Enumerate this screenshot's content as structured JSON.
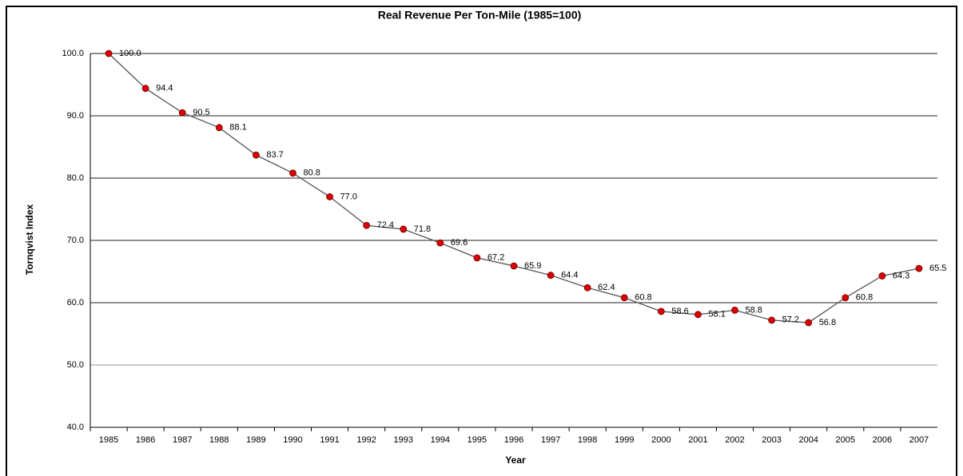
{
  "chart_data": {
    "type": "line",
    "title": "Real Revenue Per Ton-Mile (1985=100)",
    "x_label": "Year",
    "y_label": "Tornqvist Index",
    "categories": [
      "1985",
      "1986",
      "1987",
      "1988",
      "1989",
      "1990",
      "1991",
      "1992",
      "1993",
      "1994",
      "1995",
      "1996",
      "1997",
      "1998",
      "1999",
      "2000",
      "2001",
      "2002",
      "2003",
      "2004",
      "2005",
      "2006",
      "2007"
    ],
    "series": [
      {
        "name": "Real Revenue Per Ton-Mile",
        "color": "#555555",
        "marker_color": "#dd0000",
        "values": [
          100.0,
          94.4,
          90.5,
          88.1,
          83.7,
          80.8,
          77.0,
          72.4,
          71.8,
          69.6,
          67.2,
          65.9,
          64.4,
          62.4,
          60.8,
          58.6,
          58.1,
          58.8,
          57.2,
          56.8,
          60.8,
          64.3,
          65.5
        ],
        "value_labels": [
          "100.0",
          "94.4",
          "90.5",
          "88.1",
          "83.7",
          "80.8",
          "77.0",
          "72.4",
          "71.8",
          "69.6",
          "67.2",
          "65.9",
          "64.4",
          "62.4",
          "60.8",
          "58.6",
          "58.1",
          "58.8",
          "57.2",
          "56.8",
          "60.8",
          "64.3",
          "65.5"
        ]
      }
    ],
    "ylim": [
      40,
      100
    ],
    "yticks": [
      {
        "value": 40,
        "label": "40.0"
      },
      {
        "value": 50,
        "label": "50.0"
      },
      {
        "value": 60,
        "label": "60.0"
      },
      {
        "value": 70,
        "label": "70.0"
      },
      {
        "value": 80,
        "label": "80.0"
      },
      {
        "value": 90,
        "label": "90.0"
      },
      {
        "value": 100,
        "label": "100.0"
      }
    ],
    "grid": true
  }
}
